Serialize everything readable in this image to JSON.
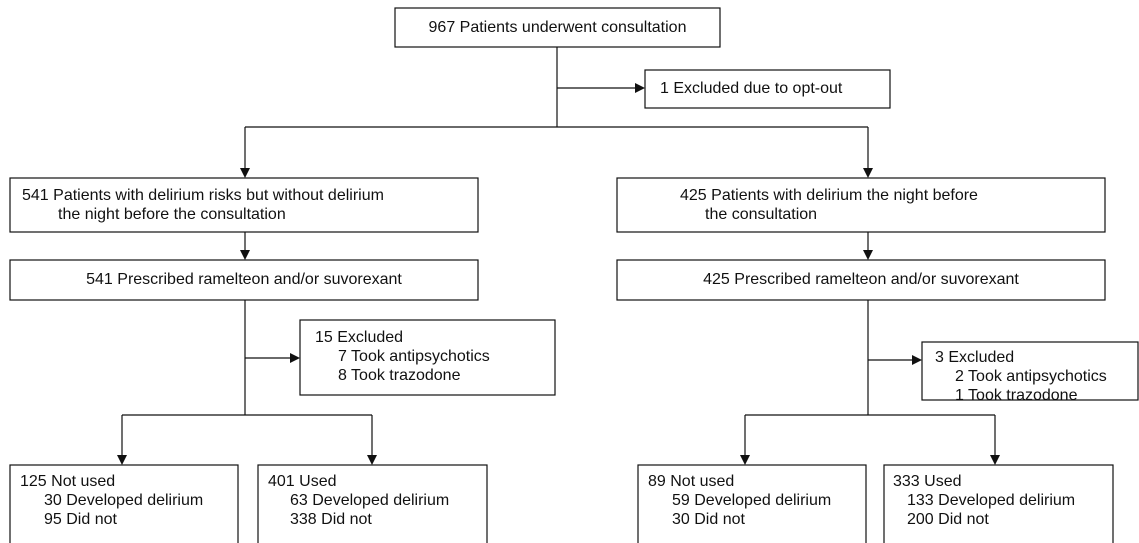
{
  "nodes": [
    {
      "lines": [
        "967 Patients underwent consultation"
      ]
    },
    {
      "lines": [
        "1 Excluded due to opt-out"
      ]
    },
    {
      "lines": [
        "541 Patients with delirium risks but without delirium",
        "the night before the consultation"
      ]
    },
    {
      "lines": [
        "425 Patients with delirium the night before",
        "the consultation"
      ]
    },
    {
      "lines": [
        "541 Prescribed ramelteon and/or suvorexant"
      ]
    },
    {
      "lines": [
        "425 Prescribed ramelteon and/or suvorexant"
      ]
    },
    {
      "lines": [
        "15 Excluded",
        "7 Took antipsychotics",
        "8 Took trazodone"
      ]
    },
    {
      "lines": [
        "3 Excluded",
        "2 Took antipsychotics",
        "1 Took trazodone"
      ]
    },
    {
      "lines": [
        "125 Not used",
        "30 Developed delirium",
        "95 Did not"
      ]
    },
    {
      "lines": [
        "401 Used",
        "63 Developed delirium",
        "338 Did not"
      ]
    },
    {
      "lines": [
        "89 Not used",
        "59 Developed delirium",
        "30 Did not"
      ]
    },
    {
      "lines": [
        "333 Used",
        "133 Developed delirium",
        "200 Did not"
      ]
    }
  ]
}
